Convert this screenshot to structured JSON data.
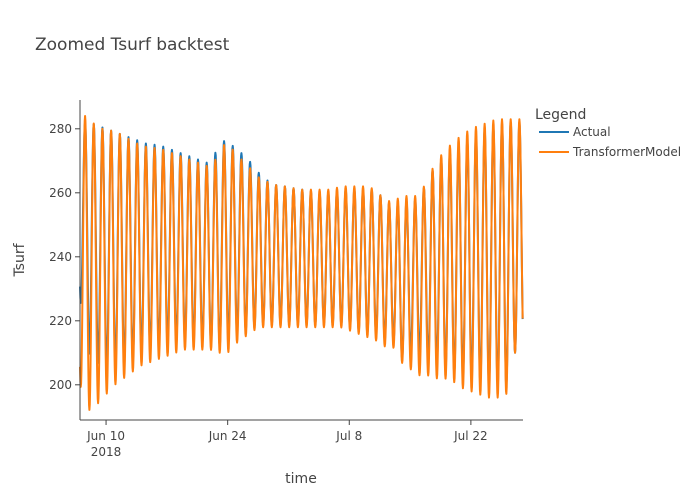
{
  "chart_data": {
    "type": "line",
    "title": "Zoomed Tsurf backtest",
    "xlabel": "time",
    "ylabel": "Tsurf",
    "x_start": "2018-06-07",
    "x_end": "2018-07-28",
    "x_unit": "day",
    "xlim": [
      "2018-06-07",
      "2018-07-28"
    ],
    "ylim": [
      189,
      289
    ],
    "x_ticks": [
      {
        "date": "2018-06-10",
        "label": "Jun 10",
        "sublabel": "2018"
      },
      {
        "date": "2018-06-24",
        "label": "Jun 24",
        "sublabel": ""
      },
      {
        "date": "2018-07-08",
        "label": "Jul 8",
        "sublabel": ""
      },
      {
        "date": "2018-07-22",
        "label": "Jul 22",
        "sublabel": ""
      }
    ],
    "y_ticks": [
      200,
      220,
      240,
      260,
      280
    ],
    "grid": false,
    "legend": {
      "title": "Legend",
      "position": "right"
    },
    "series": [
      {
        "name": "Actual",
        "color": "#1f77b4",
        "x": [
          "2018-06-07",
          "2018-06-08",
          "2018-06-09",
          "2018-06-10",
          "2018-06-11",
          "2018-06-12",
          "2018-06-13",
          "2018-06-14",
          "2018-06-15",
          "2018-06-16",
          "2018-06-17",
          "2018-06-18",
          "2018-06-19",
          "2018-06-20",
          "2018-06-21",
          "2018-06-22",
          "2018-06-23",
          "2018-06-24",
          "2018-06-25",
          "2018-06-26",
          "2018-06-27",
          "2018-06-28",
          "2018-06-29",
          "2018-06-30",
          "2018-07-01",
          "2018-07-02",
          "2018-07-03",
          "2018-07-04",
          "2018-07-05",
          "2018-07-06",
          "2018-07-07",
          "2018-07-08",
          "2018-07-09",
          "2018-07-10",
          "2018-07-11",
          "2018-07-12",
          "2018-07-13",
          "2018-07-14",
          "2018-07-15",
          "2018-07-16",
          "2018-07-17",
          "2018-07-18",
          "2018-07-19",
          "2018-07-20",
          "2018-07-21",
          "2018-07-22",
          "2018-07-23",
          "2018-07-24",
          "2018-07-25",
          "2018-07-26",
          "2018-07-27"
        ],
        "max": [
          282,
          282,
          281,
          280,
          279,
          278,
          277,
          276,
          275,
          275,
          274,
          273,
          272,
          271,
          270,
          269,
          275,
          277,
          273,
          272,
          268,
          265,
          263,
          262,
          262,
          261,
          261,
          260,
          260,
          260,
          261,
          261,
          261,
          261,
          261,
          258,
          256,
          257,
          258,
          258,
          264,
          269,
          271,
          274,
          275,
          277,
          279,
          280,
          281,
          282,
          282
        ],
        "min": [
          227,
          210,
          207,
          205,
          206,
          207,
          208,
          210,
          211,
          212,
          213,
          214,
          214,
          214,
          214,
          213,
          212,
          214,
          216,
          217,
          218,
          219,
          219,
          219,
          219,
          219,
          219,
          219,
          219,
          219,
          219,
          218,
          217,
          216,
          216,
          214,
          214,
          208,
          210,
          210,
          208,
          207,
          205,
          204,
          203,
          202,
          201,
          200,
          200,
          199,
          210
        ]
      },
      {
        "name": "TransformerModel",
        "color": "#ff7f0e",
        "x": [
          "2018-06-07",
          "2018-06-08",
          "2018-06-09",
          "2018-06-10",
          "2018-06-11",
          "2018-06-12",
          "2018-06-13",
          "2018-06-14",
          "2018-06-15",
          "2018-06-16",
          "2018-06-17",
          "2018-06-18",
          "2018-06-19",
          "2018-06-20",
          "2018-06-21",
          "2018-06-22",
          "2018-06-23",
          "2018-06-24",
          "2018-06-25",
          "2018-06-26",
          "2018-06-27",
          "2018-06-28",
          "2018-06-29",
          "2018-06-30",
          "2018-07-01",
          "2018-07-02",
          "2018-07-03",
          "2018-07-04",
          "2018-07-05",
          "2018-07-06",
          "2018-07-07",
          "2018-07-08",
          "2018-07-09",
          "2018-07-10",
          "2018-07-11",
          "2018-07-12",
          "2018-07-13",
          "2018-07-14",
          "2018-07-15",
          "2018-07-16",
          "2018-07-17",
          "2018-07-18",
          "2018-07-19",
          "2018-07-20",
          "2018-07-21",
          "2018-07-22",
          "2018-07-23",
          "2018-07-24",
          "2018-07-25",
          "2018-07-26",
          "2018-07-27"
        ],
        "max": [
          284,
          284,
          280,
          280,
          279,
          278,
          276,
          275,
          274,
          274,
          273,
          272,
          271,
          270,
          269,
          268,
          272,
          277,
          271,
          270,
          266,
          264,
          263,
          262,
          262,
          261,
          261,
          261,
          261,
          261,
          262,
          262,
          262,
          262,
          261,
          258,
          257,
          259,
          259,
          259,
          264,
          270,
          273,
          276,
          278,
          280,
          281,
          282,
          283,
          283,
          283
        ],
        "min": [
          200,
          192,
          194,
          197,
          200,
          202,
          204,
          206,
          207,
          208,
          209,
          210,
          211,
          211,
          211,
          211,
          210,
          210,
          213,
          215,
          217,
          218,
          218,
          218,
          218,
          218,
          218,
          218,
          218,
          218,
          218,
          217,
          216,
          215,
          214,
          212,
          212,
          207,
          205,
          203,
          203,
          202,
          202,
          201,
          199,
          198,
          197,
          196,
          196,
          196,
          210
        ]
      }
    ]
  }
}
